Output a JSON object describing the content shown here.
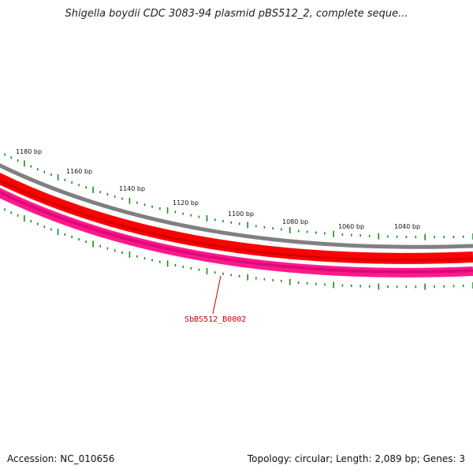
{
  "header": {
    "title": "Shigella boydii CDC 3083-94 plasmid pBS512_2, complete seque..."
  },
  "map": {
    "tick_labels": [
      "1180 bp",
      "1160 bp",
      "1140 bp",
      "1120 bp",
      "1100 bp",
      "1080 bp",
      "1060 bp",
      "1040 bp"
    ],
    "gene_label": "SbBS512_B0002",
    "colors": {
      "backbone": "#808080",
      "gene_forward": "#ff0000",
      "gene_reverse": "#ff1a8c",
      "tick": "#1a8c1a",
      "gene_label": "#cc0000"
    }
  },
  "footer": {
    "accession": "Accession: NC_010656",
    "summary": "Topology: circular; Length: 2,089 bp; Genes: 3"
  }
}
